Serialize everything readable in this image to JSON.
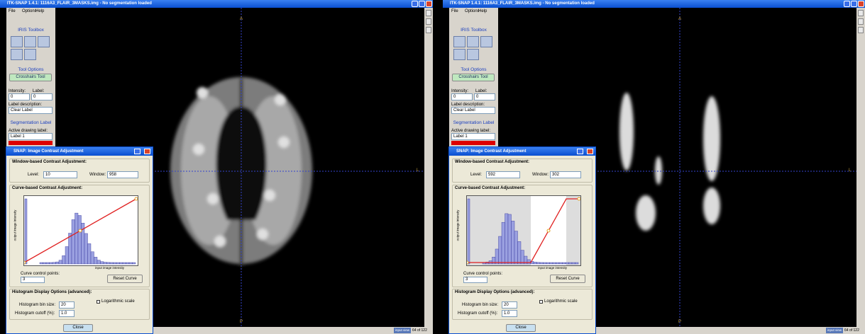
{
  "windows": [
    {
      "title": "ITK-SNAP 1.4.1: 1116A3_FLAIR_3MASKS.img - No segmentation loaded",
      "menu": [
        "File",
        "Options",
        "Help"
      ],
      "toolbox": {
        "title": "IRIS Toolbox",
        "tool_options": "Tool Options",
        "tool": "Crosshairs Tool",
        "intensity_label": "Intensity:",
        "label_label": "Label:",
        "intensity": "0",
        "label": "0",
        "description_label": "Label description:",
        "description": "Clear Label",
        "segmentation_title": "Segmentation Label",
        "drawing_label_caption": "Active drawing label:",
        "drawing_label": "Label 1"
      },
      "view": {
        "top": "A",
        "bottom": "P",
        "right": "L"
      },
      "status": {
        "button": "input view",
        "slice": "64 of 122"
      },
      "dialog": {
        "title": "SNAP: Image Contrast Adjustment",
        "window_section": "Window-based Contrast Adjustment:",
        "level_label": "Level:",
        "level": "10",
        "window_label": "Window:",
        "window": "958",
        "curve_section": "Curve-based Contrast Adjustment:",
        "y_axis": "output image intensity",
        "x_axis": "input image intensity",
        "control_points_label": "Curve control points:",
        "control_points": "3",
        "reset": "Reset Curve",
        "histogram_section": "Histogram Display Options (advanced):",
        "log_label": "Logarithmic scale",
        "bin_size_label": "Histogram bin size:",
        "bin_size": "20",
        "cutoff_label": "Histogram cutoff (%):",
        "cutoff": "1.0",
        "close": "Close"
      }
    },
    {
      "title": "ITK-SNAP 1.4.1: 1116A3_FLAIR_3MASKS.img - No segmentation loaded",
      "menu": [
        "File",
        "Options",
        "Help"
      ],
      "toolbox": {
        "title": "IRIS Toolbox",
        "tool_options": "Tool Options",
        "tool": "Crosshairs Tool",
        "intensity_label": "Intensity:",
        "label_label": "Label:",
        "intensity": "0",
        "label": "0",
        "description_label": "Label description:",
        "description": "Clear Label",
        "segmentation_title": "Segmentation Label",
        "drawing_label_caption": "Active drawing label:",
        "drawing_label": "Label 1"
      },
      "view": {
        "top": "A",
        "bottom": "P",
        "right": "L"
      },
      "status": {
        "button": "input view",
        "slice": "64 of 122"
      },
      "dialog": {
        "title": "SNAP: Image Contrast Adjustment",
        "window_section": "Window-based Contrast Adjustment:",
        "level_label": "Level:",
        "level": "592",
        "window_label": "Window:",
        "window": "302",
        "curve_section": "Curve-based Contrast Adjustment:",
        "y_axis": "output image intensity",
        "x_axis": "input image intensity",
        "control_points_label": "Curve control points:",
        "control_points": "3",
        "reset": "Reset Curve",
        "histogram_section": "Histogram Display Options (advanced):",
        "log_label": "Logarithmic scale",
        "bin_size_label": "Histogram bin size:",
        "bin_size": "20",
        "cutoff_label": "Histogram cutoff (%):",
        "cutoff": "1.0",
        "close": "Close"
      }
    }
  ]
}
